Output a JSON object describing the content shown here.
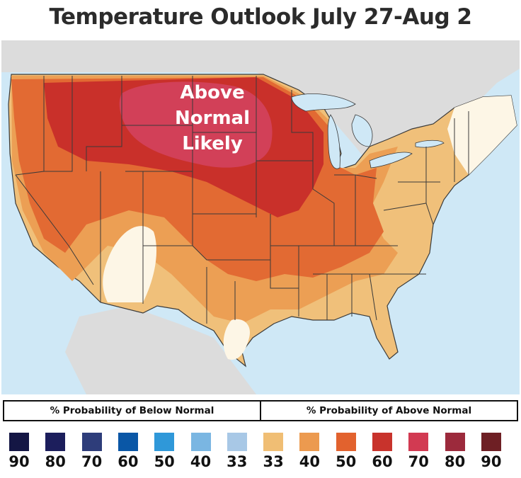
{
  "title": "Temperature Outlook July 27-Aug 2",
  "map": {
    "callout_lines": [
      "Above",
      "Normal",
      "Likely"
    ],
    "colors": {
      "background_land": "#dcdcdc",
      "water": "#cfe8f6",
      "border": "#3a3a3a",
      "above_33": "#f0c07a",
      "above_40": "#ec9f54",
      "above_50": "#e26a33",
      "above_60": "#c9302a",
      "above_70": "#d24058",
      "normal": "#fdf6e6"
    }
  },
  "legend": {
    "below_label": "% Probability of Below Normal",
    "above_label": "% Probability of Above Normal",
    "items": [
      {
        "value": "90",
        "color": "#141644"
      },
      {
        "value": "80",
        "color": "#1c1e5c"
      },
      {
        "value": "70",
        "color": "#2e3d7a"
      },
      {
        "value": "60",
        "color": "#0a57a6"
      },
      {
        "value": "50",
        "color": "#2f98d9"
      },
      {
        "value": "40",
        "color": "#7ab6e2"
      },
      {
        "value": "33",
        "color": "#a8c8e6"
      },
      {
        "value": "33",
        "color": "#f0be74"
      },
      {
        "value": "40",
        "color": "#ec9a4f"
      },
      {
        "value": "50",
        "color": "#e2622e"
      },
      {
        "value": "60",
        "color": "#c8332c"
      },
      {
        "value": "70",
        "color": "#d23a52"
      },
      {
        "value": "80",
        "color": "#9c2a3c"
      },
      {
        "value": "90",
        "color": "#6e1f24"
      }
    ]
  }
}
